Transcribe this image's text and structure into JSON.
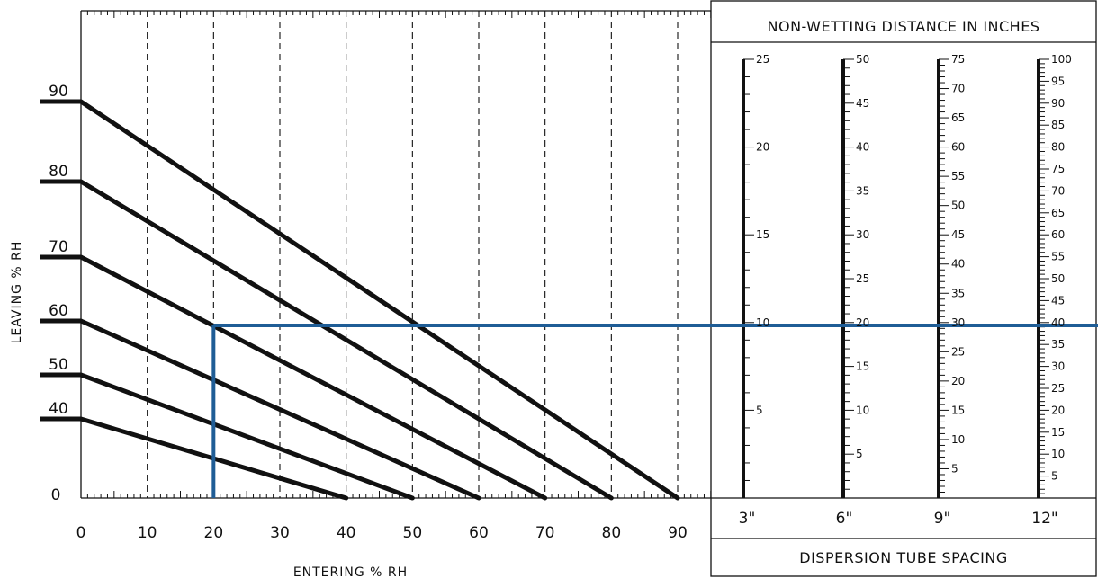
{
  "chart_data": {
    "type": "line",
    "title": "",
    "xlabel": "ENTERING % RH",
    "ylabel": "LEAVING % RH",
    "xlim": [
      0,
      90
    ],
    "x_ticks": [
      0,
      10,
      20,
      30,
      40,
      50,
      60,
      70,
      80,
      90
    ],
    "origin_label": "0",
    "grid": "vertical dashed at every 10",
    "series": [
      {
        "label": "40",
        "x": [
          0,
          40
        ],
        "y": [
          40,
          0
        ]
      },
      {
        "label": "50",
        "x": [
          0,
          50
        ],
        "y": [
          50,
          0
        ]
      },
      {
        "label": "60",
        "x": [
          0,
          60
        ],
        "y": [
          60,
          0
        ]
      },
      {
        "label": "70",
        "x": [
          0,
          70
        ],
        "y": [
          70,
          0
        ]
      },
      {
        "label": "80",
        "x": [
          0,
          80
        ],
        "y": [
          80,
          0
        ]
      },
      {
        "label": "90",
        "x": [
          0,
          90
        ],
        "y": [
          90,
          0
        ]
      }
    ],
    "example_path": {
      "entering_rh": 20,
      "leaving_rh": 60,
      "color": "#1f5d96"
    },
    "nomogram": {
      "header": "NON-WETTING DISTANCE IN INCHES",
      "footer": "DISPERSION TUBE SPACING",
      "scales": [
        {
          "spacing": "3\"",
          "max": 25,
          "labels": [
            5,
            10,
            15,
            20,
            25
          ]
        },
        {
          "spacing": "6\"",
          "max": 50,
          "labels": [
            5,
            10,
            15,
            20,
            25,
            30,
            35,
            40,
            45,
            50
          ]
        },
        {
          "spacing": "9\"",
          "max": 75,
          "labels": [
            5,
            10,
            15,
            20,
            25,
            30,
            35,
            40,
            45,
            50,
            55,
            60,
            65,
            70,
            75
          ]
        },
        {
          "spacing": "12\"",
          "max": 100,
          "labels": [
            5,
            10,
            15,
            20,
            25,
            30,
            35,
            40,
            45,
            50,
            55,
            60,
            65,
            70,
            75,
            80,
            85,
            90,
            95,
            100
          ]
        }
      ]
    }
  }
}
